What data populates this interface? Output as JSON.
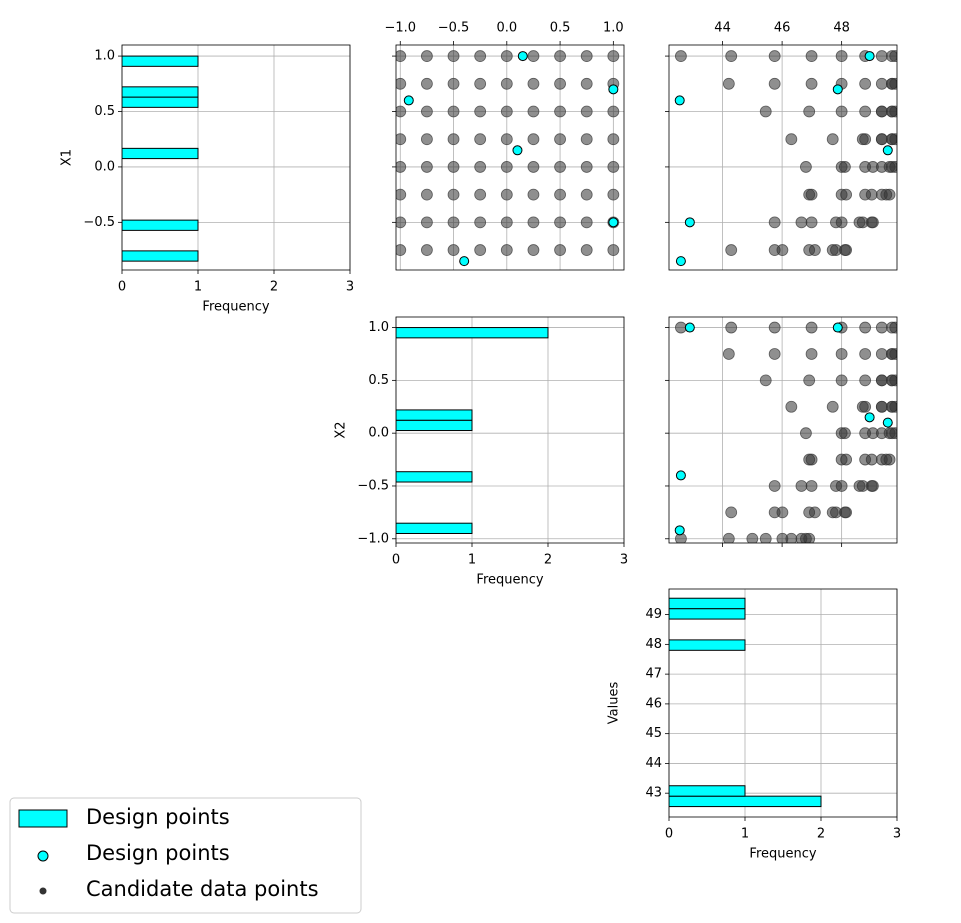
{
  "chart_data": {
    "type": "pairplot",
    "grid": true,
    "legend": "lower left",
    "frequency": {
      "label": "Frequency",
      "lim": [
        0,
        3
      ],
      "ticks": [
        0,
        1,
        2,
        3
      ]
    },
    "variables": [
      {
        "label": "X1",
        "lim": [
          -0.93,
          1.1
        ],
        "ticks": [
          {
            "value": 1,
            "label": "1.0"
          },
          {
            "value": 0.5,
            "label": "0.5"
          },
          {
            "value": 0,
            "label": "0.0"
          },
          {
            "value": -0.5,
            "label": "−0.5"
          }
        ],
        "bins": [
          -0.85,
          -0.7575,
          -0.665,
          -0.5725,
          -0.48,
          -0.3875,
          -0.295,
          -0.2025,
          -0.11,
          -0.0175,
          0.075,
          0.1675,
          0.26,
          0.3525,
          0.445,
          0.5375,
          0.63,
          0.7225,
          0.815,
          0.9075,
          1.0
        ],
        "counts": [
          1,
          0,
          0,
          1,
          0,
          0,
          0,
          0,
          0,
          0,
          1,
          0,
          0,
          0,
          0,
          1,
          1,
          0,
          0,
          1
        ]
      },
      {
        "label": "X2",
        "lim": [
          -1.04,
          1.1
        ],
        "ticks": [
          {
            "value": -1,
            "label": "−1.0"
          },
          {
            "value": -0.5,
            "label": "−0.5"
          },
          {
            "value": 0,
            "label": "0.0"
          },
          {
            "value": 0.5,
            "label": "0.5"
          },
          {
            "value": 1,
            "label": "1.0"
          }
        ],
        "bins": [
          -0.95,
          -0.8525,
          -0.755,
          -0.6575,
          -0.56,
          -0.4625,
          -0.365,
          -0.2675,
          -0.17,
          -0.0725,
          0.025,
          0.1225,
          0.22,
          0.3175,
          0.415,
          0.5125,
          0.61,
          0.7075,
          0.805,
          0.9025,
          1.0
        ],
        "counts": [
          1,
          0,
          0,
          0,
          0,
          1,
          0,
          0,
          0,
          0,
          1,
          1,
          0,
          0,
          0,
          0,
          0,
          0,
          0,
          2
        ]
      },
      {
        "label": "Values",
        "lim": [
          42.2,
          49.86
        ],
        "ticks": [
          43,
          44,
          45,
          46,
          47,
          48,
          49
        ],
        "scatter_ticks": [
          44,
          46,
          48
        ],
        "bins": [
          42.55,
          42.9,
          43.25,
          43.6,
          43.95,
          44.3,
          44.65,
          45.0,
          45.35,
          45.7,
          46.05,
          46.4,
          46.75,
          47.1,
          47.45,
          47.8,
          48.15,
          48.5,
          48.85,
          49.2,
          49.55
        ],
        "counts": [
          2,
          1,
          0,
          0,
          0,
          0,
          0,
          0,
          0,
          0,
          0,
          0,
          0,
          0,
          0,
          1,
          0,
          0,
          1,
          1
        ]
      }
    ],
    "design": {
      "name": "Design points",
      "color": "#00ffff",
      "edgecolor": "#000000",
      "data": [
        [
          1.0,
          0.6,
          0.7,
          0.15,
          -0.5,
          -0.85
        ],
        [
          0.15,
          -0.92,
          1.0,
          0.1,
          1.0,
          -0.4
        ],
        [
          48.94,
          42.56,
          47.87,
          49.55,
          42.9,
          42.6
        ]
      ]
    },
    "candidates": {
      "name": "Candidate data points",
      "color": "#333333",
      "x1": [
        -1,
        -0.75,
        -0.5,
        -0.25,
        0,
        0.25,
        0.5,
        0.75,
        1
      ],
      "x2": [
        -1,
        -0.75,
        -0.5,
        -0.25,
        0,
        0.25,
        0.5,
        0.75,
        1
      ],
      "values": [
        [
          45.0,
          46.01,
          46.65,
          46.91,
          46.8,
          46.31,
          45.45,
          44.21,
          42.6
        ],
        [
          46.01,
          47.1,
          47.81,
          48.15,
          48.11,
          47.7,
          46.91,
          45.75,
          44.29
        ],
        [
          46.65,
          47.81,
          48.6,
          49.01,
          49.05,
          48.71,
          48.0,
          46.99,
          45.75
        ],
        [
          46.91,
          48.15,
          49.01,
          49.5,
          49.61,
          49.35,
          48.79,
          48.0,
          46.99
        ],
        [
          46.8,
          48.11,
          49.05,
          49.61,
          49.8,
          49.69,
          49.35,
          48.79,
          48.0
        ],
        [
          46.31,
          47.7,
          48.71,
          49.35,
          49.69,
          49.8,
          49.69,
          49.35,
          48.79
        ],
        [
          45.45,
          46.91,
          48.0,
          48.79,
          49.35,
          49.69,
          49.8,
          49.69,
          49.35
        ],
        [
          44.21,
          45.75,
          46.99,
          48.0,
          48.79,
          49.35,
          49.69,
          49.8,
          49.69
        ],
        [
          42.6,
          44.29,
          45.75,
          46.99,
          48.0,
          48.79,
          49.35,
          49.69,
          49.8
        ]
      ]
    }
  }
}
